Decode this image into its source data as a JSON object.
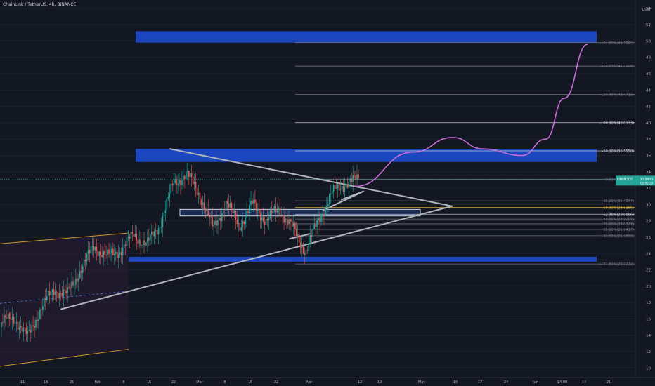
{
  "header": {
    "title": "ChainLink / TetherUS, 4h, BINANCE"
  },
  "price_axis": {
    "unit": "USDT",
    "currency_label": "USDT"
  },
  "last_price": {
    "symbol": "LINKUSDT",
    "price": "33.0900",
    "countdown": "02:09:10",
    "value": 33.09
  },
  "chart_data": {
    "type": "candlestick",
    "symbol": "LINKUSDT",
    "timeframe": "4h",
    "exchange": "BINANCE",
    "y_ticks": [
      10,
      12,
      14,
      16,
      18,
      20,
      22,
      24,
      26,
      28,
      30,
      32,
      34,
      36,
      38,
      40,
      42,
      44,
      46,
      48,
      50,
      52,
      54
    ],
    "ylim": [
      9,
      54.5
    ],
    "x_ticks": [
      "11",
      "18",
      "25",
      "Feb",
      "8",
      "15",
      "22",
      "Mar",
      "8",
      "15",
      "22",
      "Apr",
      "12",
      "19",
      "May",
      "10",
      "17",
      "24",
      "Jun",
      "14:00",
      "14",
      "21"
    ],
    "fib_levels": [
      {
        "label": "-161.80%(49.7995)",
        "value": 49.7995
      },
      {
        "label": "-200.00%(46.9299)",
        "value": 46.9299
      },
      {
        "label": "-150.00%(43.4715)",
        "value": 43.4715
      },
      {
        "label": "-100.00%(40.0133)",
        "value": 40.0133
      },
      {
        "label": "-50.00%(36.5550)",
        "value": 36.555
      },
      {
        "label": "0.00%(33.0968)",
        "value": 33.0968
      },
      {
        "label": "38.20%(30.4547)",
        "value": 30.4547
      },
      {
        "label": "50.00%(29.6385)",
        "value": 29.6385
      },
      {
        "label": "62.00%(28.8086)",
        "value": 28.8086
      },
      {
        "label": "70.50%(28.2207)",
        "value": 28.2207
      },
      {
        "label": "79.00%(27.6327)",
        "value": 27.6327
      },
      {
        "label": "85.00%(26.9417)",
        "value": 26.9417
      },
      {
        "label": "100.00%(26.1803)",
        "value": 26.1803
      },
      {
        "label": "-161.80%(22.7222)",
        "value": 22.7222
      }
    ],
    "zones": [
      {
        "name": "resistance-top",
        "y_range": [
          49.8,
          51.2
        ]
      },
      {
        "name": "resistance-mid",
        "y_range": [
          35.2,
          36.8
        ]
      },
      {
        "name": "support-bottom",
        "y_range": [
          23.0,
          23.6
        ]
      },
      {
        "name": "retest-box",
        "y_range": [
          28.6,
          29.4
        ]
      }
    ],
    "colors": {
      "background": "#131722",
      "zone": "#1e53e5",
      "up_candle": "#26a69a",
      "down_candle": "#ef5350",
      "projection": "#c96dd8",
      "trendline": "#b2b5be",
      "channel": "#d19a2e",
      "fib_highlight": "#e5b93a"
    },
    "candles_sample": [
      [
        15.0,
        16.2,
        14.2,
        15.6
      ],
      [
        15.6,
        16.8,
        14.9,
        16.1
      ],
      [
        16.1,
        17.2,
        13.1,
        13.8
      ],
      [
        13.8,
        18.0,
        13.5,
        17.4
      ],
      [
        17.4,
        20.1,
        16.8,
        19.6
      ],
      [
        19.6,
        21.5,
        18.7,
        19.0
      ],
      [
        19.0,
        22.8,
        18.5,
        22.1
      ],
      [
        22.1,
        25.8,
        21.2,
        24.9
      ],
      [
        24.9,
        26.5,
        23.0,
        23.6
      ],
      [
        23.6,
        25.0,
        22.5,
        24.4
      ],
      [
        24.4,
        27.0,
        23.8,
        26.3
      ],
      [
        26.3,
        27.5,
        24.8,
        25.1
      ],
      [
        25.1,
        28.0,
        24.6,
        27.6
      ],
      [
        27.6,
        33.0,
        27.0,
        32.5
      ],
      [
        32.5,
        36.5,
        31.0,
        33.8
      ],
      [
        33.8,
        36.8,
        30.5,
        31.2
      ],
      [
        31.2,
        33.4,
        20.6,
        27.0
      ],
      [
        27.0,
        31.5,
        23.8,
        30.2
      ],
      [
        30.2,
        32.0,
        26.5,
        27.4
      ],
      [
        27.4,
        31.2,
        25.8,
        30.1
      ],
      [
        30.1,
        31.4,
        27.3,
        28.0
      ],
      [
        28.0,
        31.3,
        27.6,
        29.5
      ],
      [
        29.5,
        30.7,
        26.8,
        27.2
      ],
      [
        27.2,
        29.8,
        23.6,
        24.2
      ],
      [
        24.2,
        28.8,
        24.0,
        28.2
      ],
      [
        28.2,
        32.1,
        28.0,
        31.4
      ],
      [
        31.4,
        35.0,
        30.5,
        32.6
      ],
      [
        32.6,
        34.2,
        31.0,
        33.09
      ]
    ],
    "projection_path": [
      [
        32.2,
        0.0
      ],
      [
        36.4,
        0.25
      ],
      [
        38.2,
        0.42
      ],
      [
        36.8,
        0.55
      ],
      [
        36.0,
        0.72
      ],
      [
        38.0,
        0.82
      ],
      [
        43.0,
        0.9
      ],
      [
        49.6,
        1.0
      ]
    ]
  }
}
